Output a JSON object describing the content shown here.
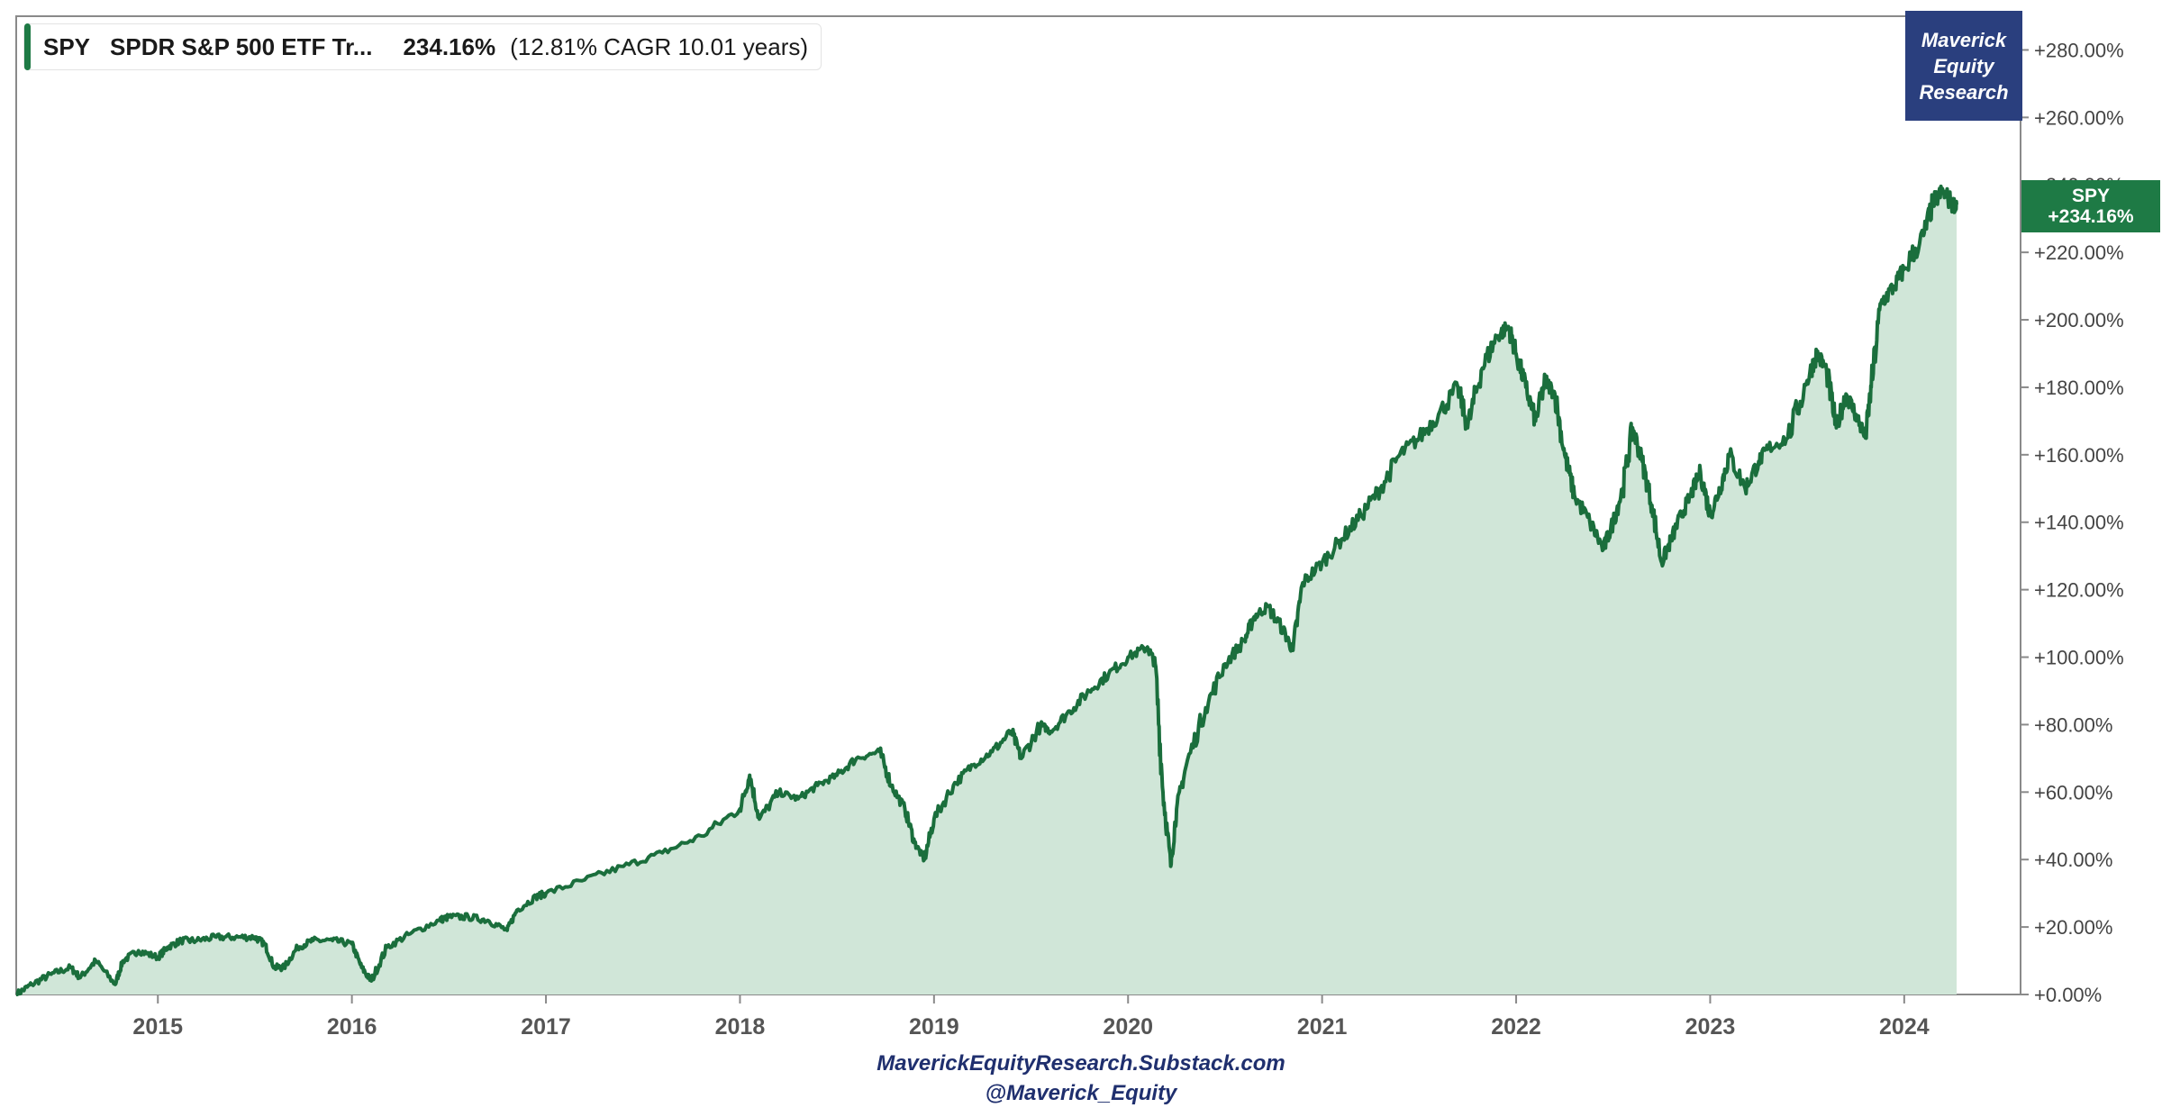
{
  "legend": {
    "ticker": "SPY",
    "name": "SPDR S&P 500 ETF Tr...",
    "total_return": "234.16%",
    "cagr_text": "(12.81% CAGR 10.01 years)",
    "swatch_color": "#1e7a45"
  },
  "brand": {
    "line1": "Maverick",
    "line2": "Equity",
    "line3": "Research",
    "color": "#2a3f7e"
  },
  "end_tag": {
    "ticker": "SPY",
    "value": "+234.16%"
  },
  "footer": {
    "site": "MaverickEquityResearch.Substack.com",
    "handle": "@Maverick_Equity"
  },
  "chart_data": {
    "type": "area",
    "title": "",
    "xlabel": "",
    "ylabel": "",
    "line_color": "#1a6e3c",
    "fill_color": "#d0e6d8",
    "x_range": [
      2014.27,
      2024.4
    ],
    "ylim": [
      0,
      290
    ],
    "y_ticks": [
      0,
      20,
      40,
      60,
      80,
      100,
      120,
      140,
      160,
      180,
      200,
      220,
      240,
      260,
      280
    ],
    "y_tick_labels": [
      "+0.00%",
      "+20.00%",
      "+40.00%",
      "+60.00%",
      "+80.00%",
      "+100.00%",
      "+120.00%",
      "+140.00%",
      "+160.00%",
      "+180.00%",
      "+200.00%",
      "+220.00%",
      "+240.00%",
      "+260.00%",
      "+280.00%"
    ],
    "x_ticks": [
      2015,
      2016,
      2017,
      2018,
      2019,
      2020,
      2021,
      2022,
      2023,
      2024
    ],
    "x_tick_labels": [
      "2015",
      "2016",
      "2017",
      "2018",
      "2019",
      "2020",
      "2021",
      "2022",
      "2023",
      "2024"
    ],
    "grid": false,
    "legend_position": "top-left",
    "series": [
      {
        "name": "SPY",
        "x": [
          2014.27,
          2014.35,
          2014.45,
          2014.55,
          2014.6,
          2014.68,
          2014.78,
          2014.82,
          2014.9,
          2015.0,
          2015.05,
          2015.12,
          2015.2,
          2015.3,
          2015.4,
          2015.5,
          2015.55,
          2015.6,
          2015.65,
          2015.72,
          2015.8,
          2015.9,
          2016.0,
          2016.05,
          2016.1,
          2016.18,
          2016.3,
          2016.45,
          2016.5,
          2016.6,
          2016.7,
          2016.8,
          2016.85,
          2016.95,
          2017.0,
          2017.2,
          2017.4,
          2017.6,
          2017.8,
          2018.0,
          2018.05,
          2018.1,
          2018.2,
          2018.3,
          2018.4,
          2018.5,
          2018.6,
          2018.72,
          2018.78,
          2018.85,
          2018.9,
          2018.95,
          2019.0,
          2019.1,
          2019.2,
          2019.3,
          2019.4,
          2019.45,
          2019.55,
          2019.6,
          2019.7,
          2019.8,
          2019.9,
          2020.0,
          2020.1,
          2020.14,
          2020.18,
          2020.22,
          2020.25,
          2020.3,
          2020.4,
          2020.5,
          2020.6,
          2020.65,
          2020.72,
          2020.8,
          2020.85,
          2020.9,
          2021.0,
          2021.1,
          2021.2,
          2021.3,
          2021.4,
          2021.5,
          2021.6,
          2021.7,
          2021.75,
          2021.82,
          2021.9,
          2021.96,
          2022.0,
          2022.05,
          2022.1,
          2022.15,
          2022.2,
          2022.25,
          2022.3,
          2022.38,
          2022.45,
          2022.5,
          2022.55,
          2022.6,
          2022.65,
          2022.7,
          2022.75,
          2022.8,
          2022.85,
          2022.9,
          2022.95,
          2023.0,
          2023.05,
          2023.1,
          2023.18,
          2023.25,
          2023.3,
          2023.4,
          2023.5,
          2023.55,
          2023.6,
          2023.65,
          2023.7,
          2023.75,
          2023.8,
          2023.83,
          2023.88,
          2023.95,
          2024.0,
          2024.1,
          2024.15,
          2024.2,
          2024.25,
          2024.27
        ],
        "values": [
          0,
          3,
          6,
          8,
          5,
          10,
          3,
          10,
          13,
          11,
          14,
          16,
          16,
          17,
          17,
          17,
          15,
          8,
          8,
          14,
          16,
          16,
          15,
          8,
          4,
          14,
          18,
          22,
          23,
          23,
          22,
          19,
          25,
          29,
          30,
          34,
          38,
          42,
          47,
          55,
          65,
          52,
          60,
          58,
          62,
          65,
          70,
          72,
          62,
          55,
          45,
          40,
          52,
          62,
          68,
          72,
          78,
          70,
          80,
          78,
          84,
          90,
          95,
          100,
          103,
          98,
          60,
          38,
          55,
          68,
          85,
          98,
          105,
          112,
          115,
          108,
          102,
          122,
          128,
          135,
          142,
          150,
          160,
          165,
          172,
          180,
          168,
          185,
          195,
          198,
          190,
          180,
          170,
          182,
          178,
          160,
          148,
          140,
          132,
          140,
          150,
          168,
          158,
          145,
          128,
          135,
          142,
          148,
          155,
          142,
          150,
          160,
          150,
          158,
          162,
          165,
          182,
          190,
          185,
          168,
          178,
          172,
          165,
          180,
          205,
          210,
          215,
          225,
          235,
          238,
          234.16,
          234.16
        ]
      }
    ]
  }
}
